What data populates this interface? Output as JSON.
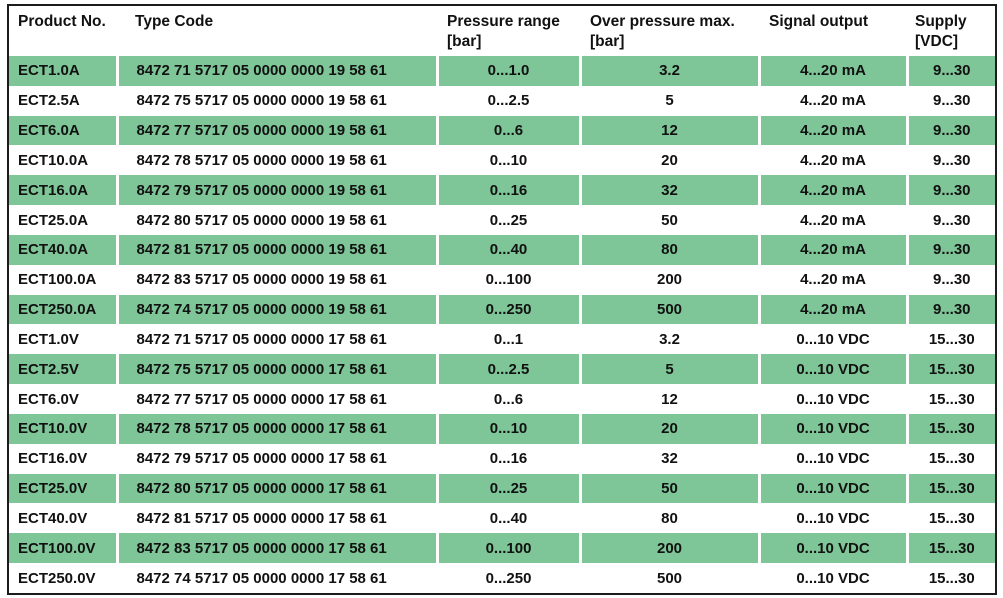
{
  "table": {
    "columns": [
      {
        "label": "Product No.",
        "unit": ""
      },
      {
        "label": "Type Code",
        "unit": ""
      },
      {
        "label": "Pressure range",
        "unit": "[bar]"
      },
      {
        "label": "Over pressure max.",
        "unit": "[bar]"
      },
      {
        "label": "Signal output",
        "unit": ""
      },
      {
        "label": "Supply",
        "unit": "[VDC]"
      }
    ],
    "rows": [
      [
        "ECT1.0A",
        "8472 71 5717 05 0000 0000 19 58 61",
        "0...1.0",
        "3.2",
        "4...20 mA",
        "9...30"
      ],
      [
        "ECT2.5A",
        "8472 75 5717 05 0000 0000 19 58 61",
        "0...2.5",
        "5",
        "4...20 mA",
        "9...30"
      ],
      [
        "ECT6.0A",
        "8472 77 5717 05 0000 0000 19 58 61",
        "0...6",
        "12",
        "4...20 mA",
        "9...30"
      ],
      [
        "ECT10.0A",
        "8472 78 5717 05 0000 0000 19 58 61",
        "0...10",
        "20",
        "4...20 mA",
        "9...30"
      ],
      [
        "ECT16.0A",
        "8472 79 5717 05 0000 0000 19 58 61",
        "0...16",
        "32",
        "4...20 mA",
        "9...30"
      ],
      [
        "ECT25.0A",
        "8472 80 5717 05 0000 0000 19 58 61",
        "0...25",
        "50",
        "4...20 mA",
        "9...30"
      ],
      [
        "ECT40.0A",
        "8472 81 5717 05 0000 0000 19 58 61",
        "0...40",
        "80",
        "4...20 mA",
        "9...30"
      ],
      [
        "ECT100.0A",
        "8472 83 5717 05 0000 0000 19 58 61",
        "0...100",
        "200",
        "4...20 mA",
        "9...30"
      ],
      [
        "ECT250.0A",
        "8472 74 5717 05 0000 0000 19 58 61",
        "0...250",
        "500",
        "4...20 mA",
        "9...30"
      ],
      [
        "ECT1.0V",
        "8472 71 5717 05 0000 0000 17 58 61",
        "0...1",
        "3.2",
        "0...10 VDC",
        "15...30"
      ],
      [
        "ECT2.5V",
        "8472 75 5717 05 0000 0000 17 58 61",
        "0...2.5",
        "5",
        "0...10 VDC",
        "15...30"
      ],
      [
        "ECT6.0V",
        "8472 77 5717 05 0000 0000 17 58 61",
        "0...6",
        "12",
        "0...10 VDC",
        "15...30"
      ],
      [
        "ECT10.0V",
        "8472 78 5717 05 0000 0000 17 58 61",
        "0...10",
        "20",
        "0...10 VDC",
        "15...30"
      ],
      [
        "ECT16.0V",
        "8472 79 5717 05 0000 0000 17 58 61",
        "0...16",
        "32",
        "0...10 VDC",
        "15...30"
      ],
      [
        "ECT25.0V",
        "8472 80 5717 05 0000 0000 17 58 61",
        "0...25",
        "50",
        "0...10 VDC",
        "15...30"
      ],
      [
        "ECT40.0V",
        "8472 81 5717 05 0000 0000 17 58 61",
        "0...40",
        "80",
        "0...10 VDC",
        "15...30"
      ],
      [
        "ECT100.0V",
        "8472 83 5717 05 0000 0000 17 58 61",
        "0...100",
        "200",
        "0...10 VDC",
        "15...30"
      ],
      [
        "ECT250.0V",
        "8472 74 5717 05 0000 0000 17 58 61",
        "0...250",
        "500",
        "0...10 VDC",
        "15...30"
      ]
    ]
  },
  "colors": {
    "row_highlight": "#7ec697",
    "border": "#1c1c1c",
    "text": "#111111",
    "background": "#ffffff"
  }
}
